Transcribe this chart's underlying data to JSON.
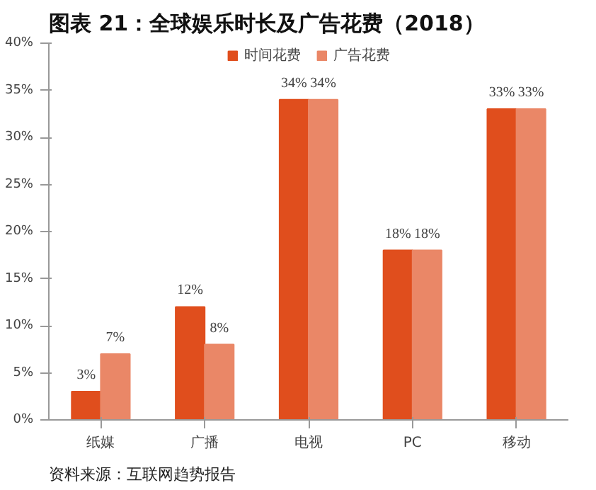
{
  "chart_data": {
    "type": "bar",
    "title": "图表 21：全球娱乐时长及广告花费（2018）",
    "annotations": [
      "资料来源：互联网趋势报告"
    ],
    "categories": [
      "纸媒",
      "广播",
      "电视",
      "PC",
      "移动"
    ],
    "series": [
      {
        "name": "时间花费",
        "color": "#e04e1d",
        "values": [
          3,
          12,
          34,
          18,
          33
        ],
        "value_labels": [
          "3%",
          "12%",
          "34%",
          "18%",
          "33%"
        ]
      },
      {
        "name": "广告花费",
        "color": "#ea8767",
        "values": [
          7,
          8,
          34,
          18,
          33
        ],
        "value_labels": [
          "7%",
          "8%",
          "34%",
          "18%",
          "33%"
        ]
      }
    ],
    "ylim": [
      0,
      40
    ],
    "yticks": [
      {
        "value": 0,
        "label": "0%"
      },
      {
        "value": 5,
        "label": "5%"
      },
      {
        "value": 10,
        "label": "10%"
      },
      {
        "value": 15,
        "label": "15%"
      },
      {
        "value": 20,
        "label": "20%"
      },
      {
        "value": 25,
        "label": "25%"
      },
      {
        "value": 30,
        "label": "30%"
      },
      {
        "value": 35,
        "label": "35%"
      },
      {
        "value": 40,
        "label": "40%"
      }
    ],
    "grid": false,
    "legend": "top"
  }
}
